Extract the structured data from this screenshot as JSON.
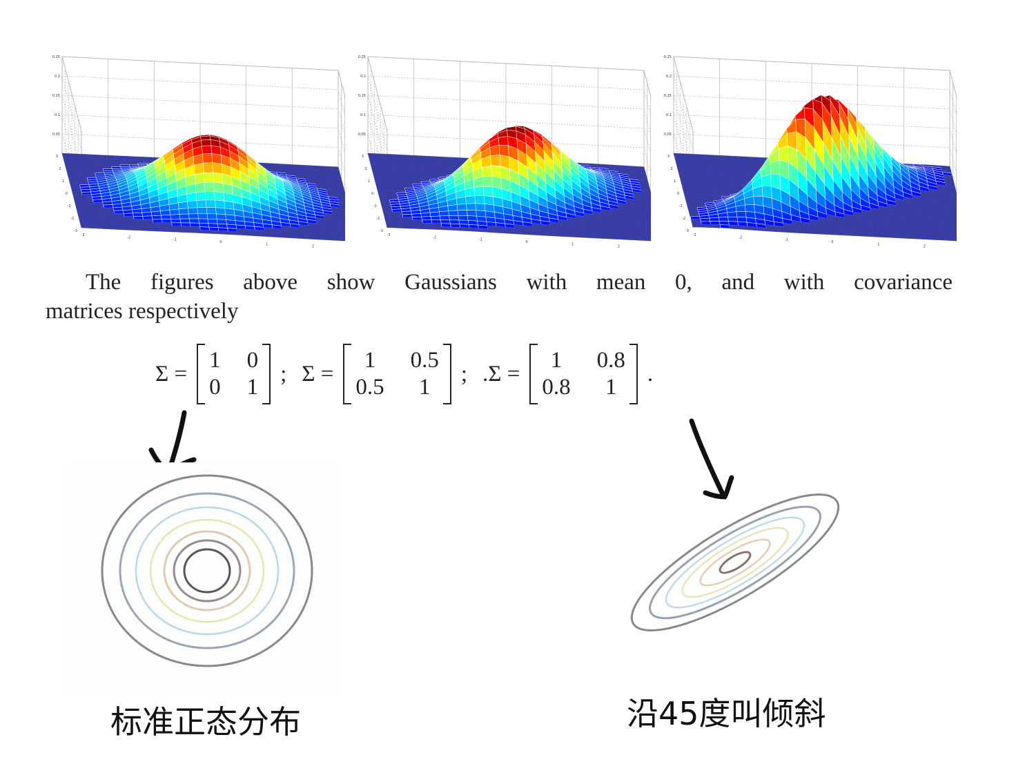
{
  "figures": {
    "plots": [
      {
        "z_ticks": [
          "0.25",
          "0.2",
          "0.15",
          "0.1",
          "0.05"
        ],
        "y_ticks": [
          "3",
          "2",
          "1",
          "0",
          "-1",
          "-2",
          "-3"
        ],
        "x_ticks": [
          "-3",
          "-2",
          "-1",
          "0",
          "1",
          "2",
          "3"
        ],
        "covariance": 0.0
      },
      {
        "z_ticks": [
          "0.25",
          "0.2",
          "0.15",
          "0.1",
          "0.05"
        ],
        "y_ticks": [
          "3",
          "2",
          "1",
          "0",
          "-1",
          "-2",
          "-3"
        ],
        "x_ticks": [
          "-3",
          "-2",
          "-1",
          "0",
          "1",
          "2",
          "3"
        ],
        "covariance": 0.5
      },
      {
        "z_ticks": [
          "0.25",
          "0.2",
          "0.15",
          "0.1",
          "0.05"
        ],
        "y_ticks": [
          "3",
          "2",
          "1",
          "0",
          "-1",
          "-2",
          "-3"
        ],
        "x_ticks": [
          "-3",
          "-2",
          "-1",
          "0",
          "1",
          "2",
          "3"
        ],
        "covariance": 0.8
      }
    ],
    "surface_color": "#3a3fa8",
    "grid_color": "#bbbbbb"
  },
  "caption": {
    "line1": "The figures above show Gaussians with mean 0, and with covariance",
    "line2": "matrices respectively"
  },
  "equation": {
    "items": [
      {
        "lhs": "Σ =",
        "matrix": [
          "1",
          "0",
          "0",
          "1"
        ],
        "sep": ";"
      },
      {
        "lhs": "Σ =",
        "matrix": [
          "1",
          "0.5",
          "0.5",
          "1"
        ],
        "sep": ";"
      },
      {
        "lhs": ".Σ =",
        "matrix": [
          "1",
          "0.8",
          "0.8",
          "1"
        ],
        "sep": "."
      }
    ]
  },
  "annotations": {
    "left_label": "标准正态分布",
    "right_label": "沿45度叫倾斜"
  }
}
